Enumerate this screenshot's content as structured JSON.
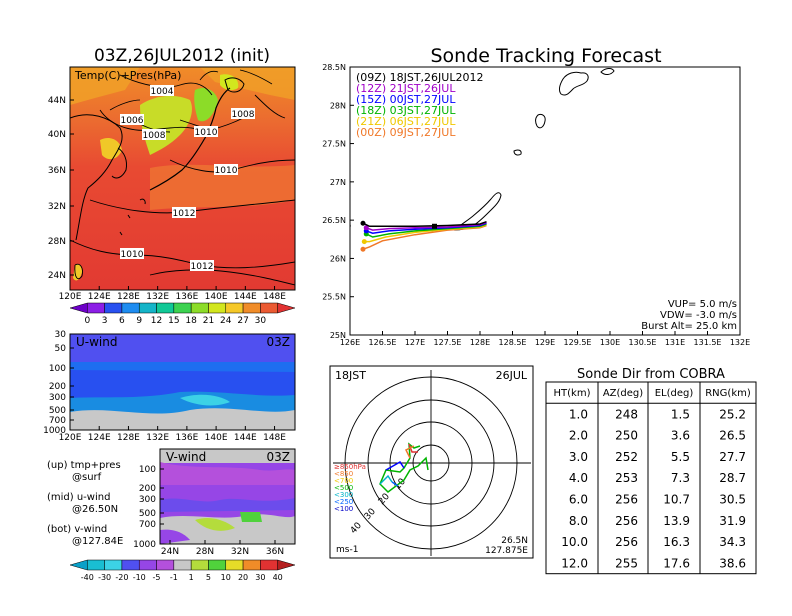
{
  "chart_data": [
    {
      "type": "heatmap",
      "title": "03Z,26JUL2012 (init)",
      "panel_label": "Temp(C)+Pres(hPa)",
      "x_ticks": [
        "120E",
        "124E",
        "128E",
        "132E",
        "136E",
        "140E",
        "144E",
        "148E"
      ],
      "y_ticks": [
        "44N",
        "40N",
        "36N",
        "32N",
        "28N",
        "24N"
      ],
      "contour_labels": [
        "1004",
        "1006",
        "1008",
        "1008",
        "1010",
        "1010",
        "1012",
        "1010",
        "1012"
      ],
      "colorbar_ticks": [
        "0",
        "3",
        "6",
        "9",
        "12",
        "15",
        "18",
        "21",
        "24",
        "27",
        "30"
      ],
      "colorbar_colors": [
        "#6d00c8",
        "#8c1ee6",
        "#2850f0",
        "#1e8cf0",
        "#14b4c8",
        "#10c896",
        "#3cd250",
        "#8cdc28",
        "#d2e61e",
        "#f5c828",
        "#f08c28",
        "#eb5a32",
        "#e13232"
      ]
    },
    {
      "type": "heatmap",
      "panel_label": "U-wind",
      "time_label": "03Z",
      "x_ticks": [
        "120E",
        "124E",
        "128E",
        "132E",
        "136E",
        "140E",
        "144E",
        "148E"
      ],
      "y_ticks": [
        "30",
        "50",
        "100",
        "200",
        "300",
        "500",
        "700",
        "1000"
      ]
    },
    {
      "type": "heatmap",
      "panel_label": "V-wind",
      "time_label": "03Z",
      "x_ticks": [
        "24N",
        "28N",
        "32N",
        "36N"
      ],
      "y_ticks": [
        "100",
        "200",
        "300",
        "500",
        "700",
        "1000"
      ],
      "colorbar_ticks": [
        "-40",
        "-30",
        "-20",
        "-10",
        "-5",
        "-1",
        "1",
        "5",
        "10",
        "20",
        "30",
        "40"
      ],
      "colorbar_colors": [
        "#0aa0c8",
        "#19bed2",
        "#3cd2e6",
        "#5050f0",
        "#9646e6",
        "#b450dc",
        "#c8c8c8",
        "#b4dc3c",
        "#50d23c",
        "#e6dc28",
        "#f08c28",
        "#e13232",
        "#b41e1e"
      ]
    },
    {
      "type": "line",
      "title": "Sonde Tracking Forecast",
      "xlim": [
        126,
        132
      ],
      "ylim": [
        25,
        28.5
      ],
      "x_ticks": [
        "126E",
        "126.5E",
        "127E",
        "127.5E",
        "128E",
        "128.5E",
        "129E",
        "129.5E",
        "130E",
        "130.5E",
        "131E",
        "131.5E",
        "132E"
      ],
      "y_ticks": [
        "25N",
        "25.5N",
        "26N",
        "26.5N",
        "27N",
        "27.5N",
        "28N",
        "28.5N"
      ],
      "series": [
        {
          "name": "(09Z) 18JST,26JUL2012",
          "color": "#000000",
          "x": [
            126.2,
            126.3,
            126.5,
            127.0,
            127.5,
            128.0,
            128.1
          ],
          "y": [
            26.46,
            26.42,
            26.42,
            26.42,
            26.43,
            26.45,
            26.48
          ]
        },
        {
          "name": "(12Z) 21JST,26JUL",
          "color": "#a000c8",
          "x": [
            126.25,
            126.35,
            126.6,
            127.0,
            127.5,
            128.0,
            128.1
          ],
          "y": [
            26.4,
            26.37,
            26.39,
            26.4,
            26.41,
            26.44,
            26.47
          ]
        },
        {
          "name": "(15Z) 00JST,27JUL",
          "color": "#0000ff",
          "x": [
            126.25,
            126.35,
            126.6,
            127.0,
            127.5,
            128.0,
            128.1
          ],
          "y": [
            26.36,
            26.33,
            26.36,
            26.38,
            26.4,
            26.43,
            26.46
          ]
        },
        {
          "name": "(18Z) 03JST,27JUL",
          "color": "#00b400",
          "x": [
            126.25,
            126.35,
            126.6,
            127.0,
            127.5,
            128.0,
            128.1
          ],
          "y": [
            26.32,
            26.28,
            26.32,
            26.36,
            26.39,
            26.42,
            26.45
          ]
        },
        {
          "name": "(21Z) 06JST,27JUL",
          "color": "#f0c800",
          "x": [
            126.22,
            126.3,
            126.55,
            127.0,
            127.5,
            128.0,
            128.1
          ],
          "y": [
            26.22,
            26.22,
            26.28,
            26.34,
            26.38,
            26.41,
            26.44
          ]
        },
        {
          "name": "(00Z) 09JST,27JUL",
          "color": "#f07828",
          "x": [
            126.2,
            126.3,
            126.5,
            127.0,
            127.5,
            128.0,
            128.1
          ],
          "y": [
            26.12,
            26.15,
            26.23,
            26.31,
            26.37,
            26.4,
            26.43
          ]
        }
      ],
      "annotations": [
        "VUP= 5.0 m/s",
        "VDW= -3.0 m/s",
        "Burst Alt= 25.0 km"
      ]
    },
    {
      "type": "polar",
      "left_label": "18JST",
      "right_label": "26JUL",
      "bottom_left": "ms-1",
      "location": [
        "26.5N",
        "127.875E"
      ],
      "ring_labels": [
        "10",
        "20",
        "30",
        "40"
      ],
      "legend": [
        {
          "label": "≥850hPa",
          "color": "#e13232"
        },
        {
          "label": "<850",
          "color": "#f07828"
        },
        {
          "label": "<700",
          "color": "#f0c800"
        },
        {
          "label": "<500",
          "color": "#00b400"
        },
        {
          "label": "<300",
          "color": "#00b4c8"
        },
        {
          "label": "<250",
          "color": "#0064ff"
        },
        {
          "label": "<100",
          "color": "#0000c8"
        }
      ]
    },
    {
      "type": "table",
      "title": "Sonde Dir from COBRA",
      "columns": [
        "HT(km)",
        "AZ(deg)",
        "EL(deg)",
        "RNG(km)"
      ],
      "rows": [
        [
          "1.0",
          "248",
          "1.5",
          "25.2"
        ],
        [
          "2.0",
          "250",
          "3.6",
          "26.5"
        ],
        [
          "3.0",
          "252",
          "5.5",
          "27.7"
        ],
        [
          "4.0",
          "253",
          "7.3",
          "28.7"
        ],
        [
          "6.0",
          "256",
          "10.7",
          "30.5"
        ],
        [
          "8.0",
          "256",
          "13.9",
          "31.9"
        ],
        [
          "10.0",
          "256",
          "16.3",
          "34.3"
        ],
        [
          "12.0",
          "255",
          "17.6",
          "38.6"
        ]
      ]
    }
  ],
  "notes": [
    {
      "line1": "(up) tmp+pres",
      "line2": "@surf"
    },
    {
      "line1": "(mid) u-wind",
      "line2": "@26.50N"
    },
    {
      "line1": "(bot) v-wind",
      "line2": "@127.84E"
    }
  ]
}
